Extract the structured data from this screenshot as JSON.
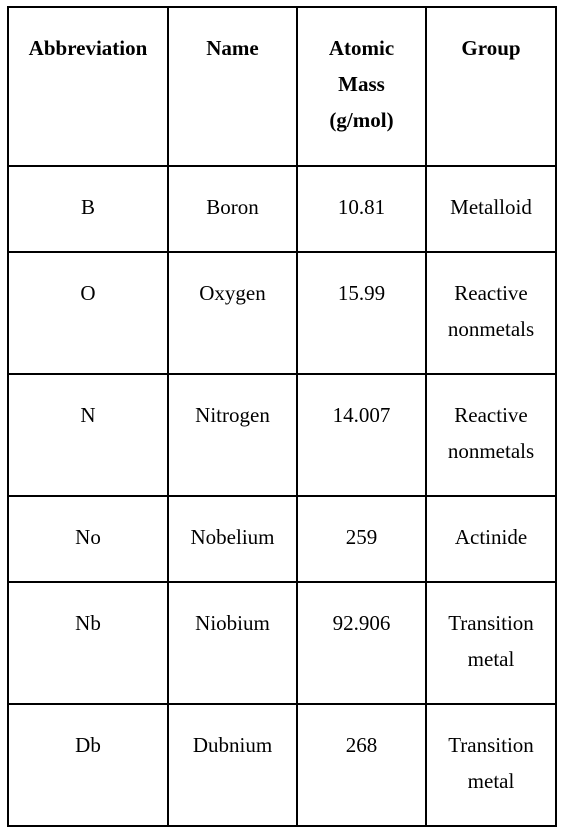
{
  "table": {
    "headers": [
      "Abbreviation",
      "Name",
      "Atomic Mass (g/mol)",
      "Group"
    ],
    "rows": [
      [
        "B",
        "Boron",
        "10.81",
        "Metalloid"
      ],
      [
        "O",
        "Oxygen",
        "15.99",
        "Reactive nonmetals"
      ],
      [
        "N",
        "Nitrogen",
        "14.007",
        "Reactive nonmetals"
      ],
      [
        "No",
        "Nobelium",
        "259",
        "Actinide"
      ],
      [
        "Nb",
        "Niobium",
        "92.906",
        "Transition metal"
      ],
      [
        "Db",
        "Dubnium",
        "268",
        "Transition metal"
      ]
    ]
  }
}
